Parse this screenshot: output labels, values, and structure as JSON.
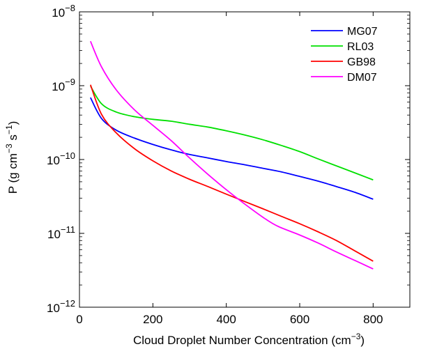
{
  "chart_data": {
    "type": "line",
    "title": "",
    "xlabel": "Cloud Droplet Number Concentration (cm",
    "xlabel_sup": "−3",
    "xlabel_suffix": ")",
    "ylabel": "P (g cm",
    "ylabel_sup1": "−3",
    "ylabel_mid": " s",
    "ylabel_sup2": "−1",
    "ylabel_suffix": ")",
    "x_scale": "linear",
    "y_scale": "log",
    "xlim": [
      0,
      900
    ],
    "ylim": [
      1e-12,
      1e-08
    ],
    "x_ticks": [
      0,
      200,
      400,
      600,
      800
    ],
    "x_tick_labels": [
      "0",
      "200",
      "400",
      "600",
      "800"
    ],
    "y_ticks": [
      1e-12,
      1e-11,
      1e-10,
      1e-09,
      1e-08
    ],
    "y_tick_labels": [
      {
        "base": "10",
        "exp": "−12"
      },
      {
        "base": "10",
        "exp": "−11"
      },
      {
        "base": "10",
        "exp": "−10"
      },
      {
        "base": "10",
        "exp": "−9"
      },
      {
        "base": "10",
        "exp": "−8"
      }
    ],
    "grid": false,
    "legend_position": "top-right",
    "series": [
      {
        "name": "MG07",
        "color": "#0000ff",
        "x": [
          30,
          60,
          100,
          150,
          200,
          250,
          300,
          350,
          400,
          450,
          500,
          550,
          600,
          650,
          700,
          750,
          800
        ],
        "y": [
          6.9e-10,
          3.6e-10,
          2.5e-10,
          1.95e-10,
          1.6e-10,
          1.35e-10,
          1.17e-10,
          1.05e-10,
          9.4e-11,
          8.5e-11,
          7.6e-11,
          6.8e-11,
          5.9e-11,
          5.1e-11,
          4.3e-11,
          3.6e-11,
          2.9e-11
        ]
      },
      {
        "name": "RL03",
        "color": "#00e000",
        "x": [
          30,
          60,
          100,
          150,
          200,
          250,
          300,
          350,
          400,
          450,
          500,
          550,
          600,
          650,
          700,
          750,
          800
        ],
        "y": [
          9.9e-10,
          5.7e-10,
          4.4e-10,
          3.8e-10,
          3.5e-10,
          3.3e-10,
          3e-10,
          2.75e-10,
          2.45e-10,
          2.15e-10,
          1.85e-10,
          1.55e-10,
          1.28e-10,
          1.02e-10,
          8.2e-11,
          6.6e-11,
          5.3e-11
        ]
      },
      {
        "name": "GB98",
        "color": "#ff0000",
        "x": [
          30,
          60,
          100,
          150,
          200,
          250,
          300,
          350,
          400,
          450,
          500,
          550,
          600,
          650,
          700,
          750,
          800
        ],
        "y": [
          1.03e-09,
          4.1e-10,
          2.3e-10,
          1.4e-10,
          9.6e-11,
          7e-11,
          5.4e-11,
          4.3e-11,
          3.4e-11,
          2.7e-11,
          2.15e-11,
          1.7e-11,
          1.35e-11,
          1.05e-11,
          8e-12,
          5.8e-12,
          4.2e-12
        ]
      },
      {
        "name": "DM07",
        "color": "#ff00ff",
        "x": [
          30,
          60,
          100,
          150,
          200,
          250,
          300,
          350,
          400,
          450,
          500,
          540,
          600,
          650,
          700,
          750,
          800
        ],
        "y": [
          4e-09,
          1.8e-09,
          8.8e-10,
          4.7e-10,
          2.9e-10,
          1.8e-10,
          1.05e-10,
          6.3e-11,
          3.9e-11,
          2.5e-11,
          1.65e-11,
          1.25e-11,
          9.5e-12,
          7.4e-12,
          5.6e-12,
          4.3e-12,
          3.3e-12
        ]
      }
    ]
  }
}
